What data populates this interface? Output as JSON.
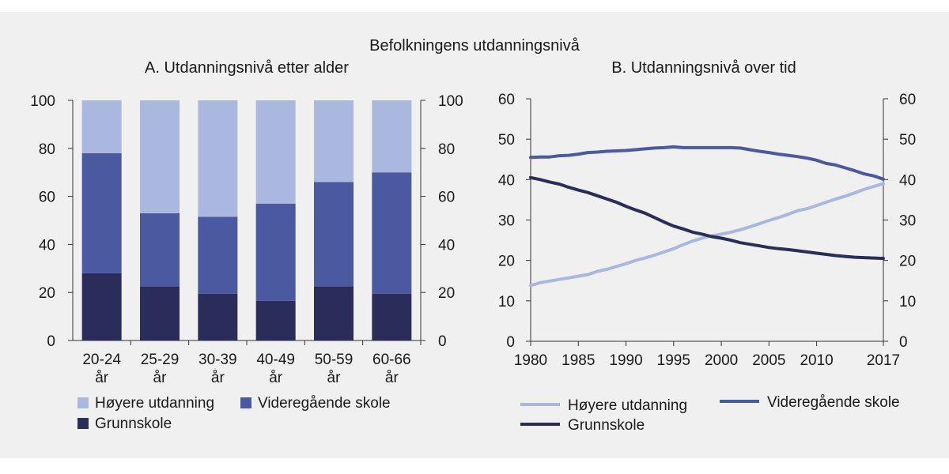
{
  "figure_title": "Befolkningens utdanningsnivå",
  "colors": {
    "background": "#f0f0f0",
    "hoyere": "#aab8df",
    "videregaende": "#4a59a0",
    "grunnskole": "#2a2d5a",
    "axis": "#333333"
  },
  "chart_data": [
    {
      "id": "A",
      "type": "bar",
      "stacked": true,
      "title": "A. Utdanningsnivå etter alder",
      "categories": [
        [
          "20-24",
          "år"
        ],
        [
          "25-29",
          "år"
        ],
        [
          "30-39",
          "år"
        ],
        [
          "40-49",
          "år"
        ],
        [
          "50-59",
          "år"
        ],
        [
          "60-66",
          "år"
        ]
      ],
      "series": [
        {
          "name": "Grunnskole",
          "color_key": "grunnskole",
          "values": [
            28,
            22.5,
            19.5,
            16.5,
            22.5,
            19.5
          ]
        },
        {
          "name": "Videregående skole",
          "color_key": "videregaende",
          "values": [
            50,
            30.5,
            32,
            40.5,
            43.5,
            50.5
          ]
        },
        {
          "name": "Høyere utdanning",
          "color_key": "hoyere",
          "values": [
            22,
            47,
            48.5,
            43,
            34,
            30
          ]
        }
      ],
      "ylim": [
        0,
        100
      ],
      "yticks": [
        0,
        20,
        40,
        60,
        80,
        100
      ],
      "legend": [
        {
          "name": "Høyere utdanning",
          "color_key": "hoyere"
        },
        {
          "name": "Videregående skole",
          "color_key": "videregaende"
        },
        {
          "name": "Grunnskole",
          "color_key": "grunnskole"
        }
      ],
      "legend_position": "bottom",
      "grid": false
    },
    {
      "id": "B",
      "type": "line",
      "title": "B. Utdanningsnivå over tid",
      "x": [
        1980,
        1981,
        1982,
        1983,
        1984,
        1985,
        1986,
        1987,
        1988,
        1989,
        1990,
        1991,
        1992,
        1993,
        1994,
        1995,
        1996,
        1997,
        1998,
        1999,
        2000,
        2001,
        2002,
        2003,
        2004,
        2005,
        2006,
        2007,
        2008,
        2009,
        2010,
        2011,
        2012,
        2013,
        2014,
        2015,
        2016,
        2017
      ],
      "series": [
        {
          "name": "Høyere utdanning",
          "color_key": "hoyere",
          "values": [
            13.8,
            14.5,
            14.9,
            15.3,
            15.7,
            16.1,
            16.5,
            17.3,
            17.8,
            18.5,
            19.2,
            20.0,
            20.6,
            21.3,
            22.1,
            22.9,
            23.9,
            24.8,
            25.5,
            26.1,
            26.5,
            27.0,
            27.6,
            28.3,
            29.1,
            29.9,
            30.6,
            31.4,
            32.3,
            32.8,
            33.6,
            34.4,
            35.2,
            35.9,
            36.7,
            37.6,
            38.3,
            39.0
          ]
        },
        {
          "name": "Videregående skole",
          "color_key": "videregaende",
          "values": [
            45.5,
            45.6,
            45.6,
            45.9,
            46.0,
            46.3,
            46.7,
            46.8,
            47.0,
            47.1,
            47.2,
            47.4,
            47.6,
            47.8,
            47.9,
            48.1,
            47.9,
            47.9,
            47.9,
            47.9,
            47.9,
            47.9,
            47.8,
            47.4,
            47.0,
            46.7,
            46.3,
            46.0,
            45.7,
            45.3,
            44.8,
            44.0,
            43.6,
            42.9,
            42.2,
            41.4,
            40.9,
            40.1
          ]
        },
        {
          "name": "Grunnskole",
          "color_key": "grunnskole",
          "values": [
            40.5,
            40.0,
            39.4,
            38.9,
            38.1,
            37.4,
            36.8,
            36.0,
            35.2,
            34.4,
            33.4,
            32.5,
            31.7,
            30.6,
            29.5,
            28.5,
            27.8,
            27.0,
            26.5,
            25.9,
            25.5,
            25.0,
            24.4,
            24.0,
            23.6,
            23.2,
            22.9,
            22.7,
            22.4,
            22.1,
            21.8,
            21.5,
            21.2,
            21.0,
            20.8,
            20.7,
            20.6,
            20.5
          ]
        }
      ],
      "xticks": [
        1980,
        1985,
        1990,
        1995,
        2000,
        2005,
        2010,
        2017
      ],
      "xlim": [
        1980,
        2017
      ],
      "ylim": [
        0,
        60
      ],
      "yticks": [
        0,
        10,
        20,
        30,
        40,
        50,
        60
      ],
      "legend": [
        {
          "name": "Høyere utdanning",
          "color_key": "hoyere"
        },
        {
          "name": "Videregående skole",
          "color_key": "videregaende"
        },
        {
          "name": "Grunnskole",
          "color_key": "grunnskole"
        }
      ],
      "legend_position": "bottom",
      "grid": false
    }
  ]
}
